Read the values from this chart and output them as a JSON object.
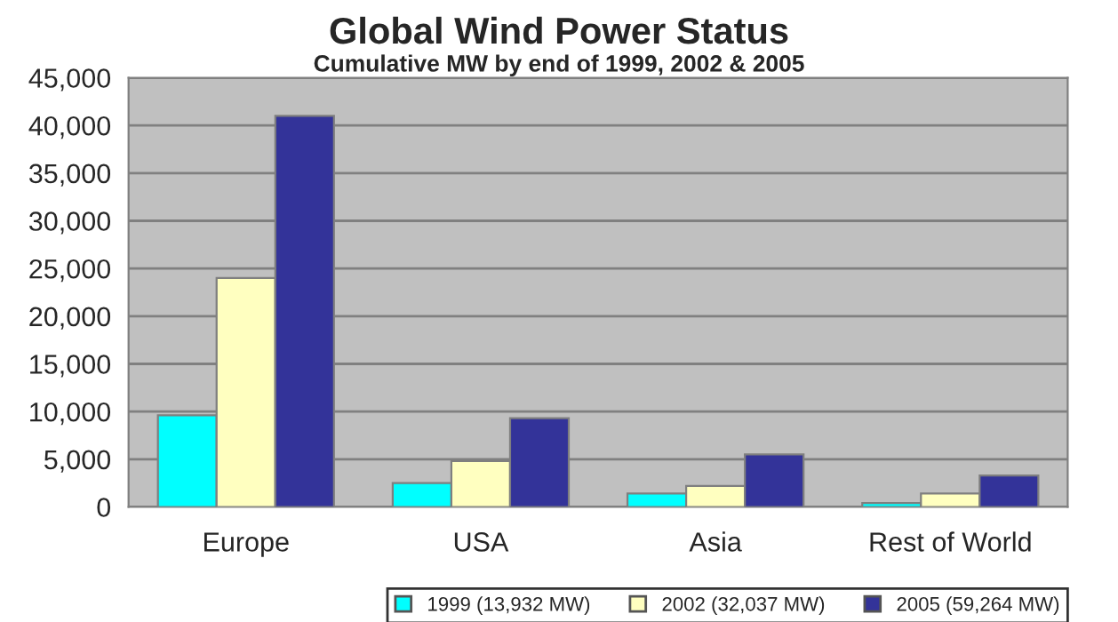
{
  "chart_data": {
    "type": "bar",
    "title": "Global Wind Power Status",
    "subtitle": "Cumulative MW by end of 1999, 2002 & 2005",
    "categories": [
      "Europe",
      "USA",
      "Asia",
      "Rest of World"
    ],
    "series": [
      {
        "name": "1999 (13,932 MW)",
        "color": "#00ffff",
        "values": [
          9600,
          2500,
          1400,
          400
        ]
      },
      {
        "name": "2002 (32,037 MW)",
        "color": "#ffffc0",
        "values": [
          24000,
          4800,
          2200,
          1400
        ]
      },
      {
        "name": "2005 (59,264 MW)",
        "color": "#333399",
        "values": [
          41000,
          9300,
          5500,
          3300
        ]
      }
    ],
    "ylim": [
      0,
      45000
    ],
    "yticks": [
      {
        "value": 0,
        "label": "0"
      },
      {
        "value": 5000,
        "label": "5,000"
      },
      {
        "value": 10000,
        "label": "10,000"
      },
      {
        "value": 15000,
        "label": "15,000"
      },
      {
        "value": 20000,
        "label": "20,000"
      },
      {
        "value": 25000,
        "label": "25,000"
      },
      {
        "value": 30000,
        "label": "30,000"
      },
      {
        "value": 35000,
        "label": "35,000"
      },
      {
        "value": 40000,
        "label": "40,000"
      },
      {
        "value": 45000,
        "label": "45,000"
      }
    ],
    "grid": "y",
    "legend": "bottom right"
  }
}
